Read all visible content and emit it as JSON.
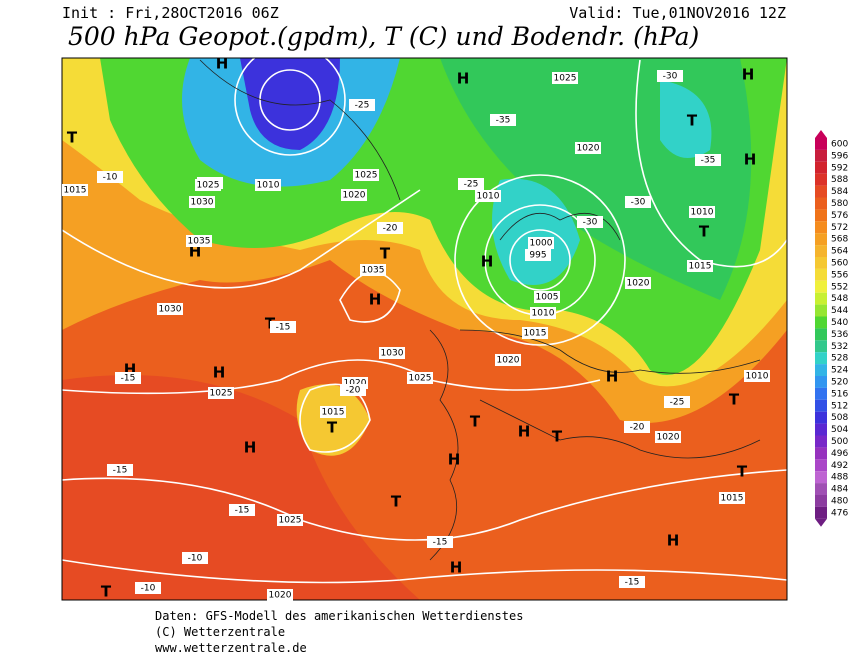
{
  "header": {
    "init": "Init : Fri,28OCT2016 06Z",
    "valid": "Valid: Tue,01NOV2016 12Z",
    "title": "500 hPa Geopot.(gpdm), T (C) und Bodendr. (hPa)"
  },
  "colorbar": {
    "levels": [
      {
        "value": 600,
        "color": "#c8005a"
      },
      {
        "value": 596,
        "color": "#c81e3c"
      },
      {
        "value": 592,
        "color": "#d2232d"
      },
      {
        "value": 588,
        "color": "#dc3228"
      },
      {
        "value": 584,
        "color": "#e64b23"
      },
      {
        "value": 580,
        "color": "#eb5f1e"
      },
      {
        "value": 576,
        "color": "#f07319"
      },
      {
        "value": 572,
        "color": "#f58c1e"
      },
      {
        "value": 568,
        "color": "#f5a023"
      },
      {
        "value": 564,
        "color": "#f5b42d"
      },
      {
        "value": 560,
        "color": "#f5c832"
      },
      {
        "value": 556,
        "color": "#f5dc37"
      },
      {
        "value": 552,
        "color": "#f0f03c"
      },
      {
        "value": 548,
        "color": "#c8f032"
      },
      {
        "value": 544,
        "color": "#96e632"
      },
      {
        "value": 540,
        "color": "#50d732"
      },
      {
        "value": 536,
        "color": "#32c85a"
      },
      {
        "value": 532,
        "color": "#32c88c"
      },
      {
        "value": 528,
        "color": "#32d2c8"
      },
      {
        "value": 524,
        "color": "#32b4e6"
      },
      {
        "value": 520,
        "color": "#3296f0"
      },
      {
        "value": 516,
        "color": "#3273f0"
      },
      {
        "value": 512,
        "color": "#3250e6"
      },
      {
        "value": 508,
        "color": "#3c32dc"
      },
      {
        "value": 504,
        "color": "#5a28d2"
      },
      {
        "value": 500,
        "color": "#7828c8"
      },
      {
        "value": 496,
        "color": "#9632be"
      },
      {
        "value": 492,
        "color": "#aa46c8"
      },
      {
        "value": 488,
        "color": "#be64d2"
      },
      {
        "value": 484,
        "color": "#a050b4"
      },
      {
        "value": 480,
        "color": "#8c3ca0"
      },
      {
        "value": 476,
        "color": "#6e1e82"
      }
    ]
  },
  "map_labels": [
    "H",
    "T",
    "H",
    "H",
    "T",
    "H",
    "T",
    "H",
    "T",
    "H",
    "H",
    "T",
    "H",
    "H",
    "T",
    "T",
    "H",
    "H",
    "T",
    "H",
    "T",
    "T",
    "T",
    "H",
    "H",
    "T",
    "H",
    "1025",
    "1030",
    "1035",
    "1030",
    "1025",
    "1020",
    "1015",
    "1010",
    "1000",
    "995",
    "1005",
    "1010",
    "1015",
    "1020",
    "1025",
    "1035",
    "1030",
    "1025",
    "1020",
    "1015",
    "1025",
    "1015",
    "1010",
    "1020",
    "1010",
    "1015",
    "1020",
    "1010",
    "1025",
    "1020",
    "1025",
    "1020",
    "-35",
    "-30",
    "-25",
    "-20",
    "-15",
    "-10",
    "-25",
    "-30",
    "-35",
    "-15",
    "-20",
    "-15",
    "-10",
    "-15",
    "-15",
    "-20",
    "-25",
    "-30",
    "-15",
    "-10"
  ],
  "footer": {
    "lines": [
      "Daten: GFS-Modell des amerikanischen Wetterdienstes",
      "(C) Wetterzentrale",
      "www.wetterzentrale.de"
    ]
  }
}
